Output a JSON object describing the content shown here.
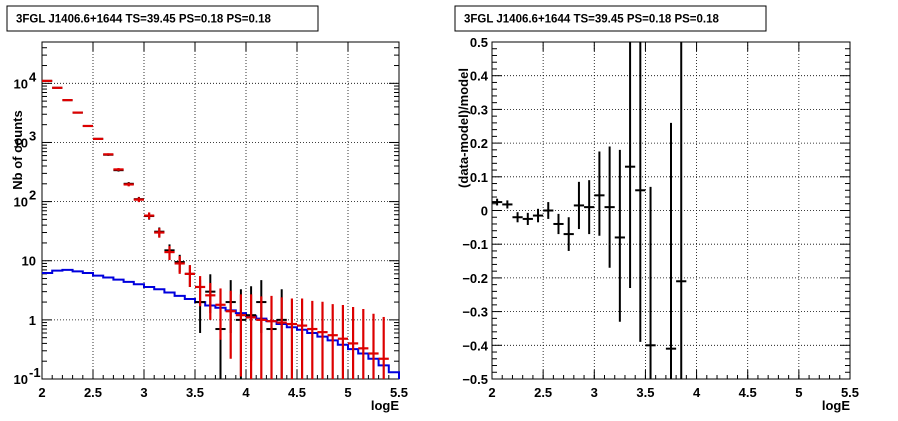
{
  "chart_data": [
    {
      "type": "histogram-errorbars",
      "title": "3FGL J1406.6+1644 TS=39.45 PS=0.18 PS=0.18",
      "xlabel": "logE",
      "ylabel": "Nb of counts",
      "xlim": [
        2,
        5.5
      ],
      "ylim": [
        0.1,
        50000
      ],
      "yscale": "log",
      "grid": true,
      "x_ticks": [
        "2",
        "2.5",
        "3",
        "3.5",
        "4",
        "4.5",
        "5",
        "5.5"
      ],
      "y_ticks": [
        "10^-1",
        "1",
        "10",
        "10^2",
        "10^3",
        "10^4"
      ],
      "bin_edges": [
        2.0,
        2.1,
        2.2,
        2.3,
        2.4,
        2.5,
        2.6,
        2.7,
        2.8,
        2.9,
        3.0,
        3.1,
        3.2,
        3.3,
        3.4,
        3.5,
        3.6,
        3.7,
        3.8,
        3.9,
        4.0,
        4.1,
        4.2,
        4.3,
        4.4,
        4.5,
        4.6,
        4.7,
        4.8,
        4.9,
        5.0,
        5.1,
        5.2,
        5.3,
        5.4,
        5.5
      ],
      "series": [
        {
          "color": "#000000",
          "x": [
            2.05,
            2.15,
            2.25,
            2.35,
            2.45,
            2.55,
            2.65,
            2.75,
            2.85,
            2.95,
            3.05,
            3.15,
            3.25,
            3.35,
            3.45,
            3.55,
            3.65,
            3.75,
            3.85,
            3.95,
            4.05,
            4.15,
            4.25,
            4.35
          ],
          "y": [
            11000,
            8400,
            5200,
            3200,
            1900,
            1150,
            620,
            340,
            200,
            110,
            57,
            31,
            15,
            9.5,
            6,
            2,
            3,
            0.7,
            2,
            1,
            1.2,
            2,
            0.7,
            1
          ],
          "yerr_low": [
            100,
            90,
            70,
            55,
            45,
            35,
            25,
            18,
            14,
            10,
            7.5,
            5.5,
            3.9,
            3.1,
            2.4,
            1.4,
            1.7,
            0.6,
            1.4,
            0.9,
            1.0,
            1.4,
            0.6,
            0.9
          ],
          "yerr_high": [
            100,
            90,
            70,
            55,
            45,
            35,
            25,
            18,
            14,
            10,
            7.5,
            5.5,
            3.9,
            3.1,
            2.4,
            2.7,
            2.9,
            1.6,
            2.7,
            2.3,
            2.5,
            2.7,
            1.6,
            2.3
          ]
        },
        {
          "color": "#dd0000",
          "x": [
            2.05,
            2.15,
            2.25,
            2.35,
            2.45,
            2.55,
            2.65,
            2.75,
            2.85,
            2.95,
            3.05,
            3.15,
            3.25,
            3.35,
            3.45,
            3.55,
            3.65,
            3.75,
            3.85,
            3.95,
            4.05,
            4.15,
            4.25,
            4.35,
            4.45,
            4.55,
            4.65,
            4.75,
            4.85,
            4.95,
            5.05,
            5.15,
            5.25,
            5.35
          ],
          "y": [
            11000,
            8400,
            5200,
            3200,
            1900,
            1150,
            630,
            350,
            195,
            108,
            58,
            30,
            14,
            9,
            6,
            3.6,
            2.6,
            1.8,
            1.4,
            1.2,
            1.1,
            1.0,
            0.95,
            0.9,
            0.85,
            0.8,
            0.7,
            0.62,
            0.55,
            0.48,
            0.4,
            0.33,
            0.27,
            0.22
          ],
          "yerr_low": [
            100,
            90,
            70,
            55,
            45,
            35,
            25,
            19,
            14,
            10,
            7.6,
            5.5,
            3.7,
            3,
            2.4,
            1.9,
            1.6,
            1.34,
            1.18,
            1.09,
            1.04,
            0.99,
            0.94,
            0.89,
            0.84,
            0.79,
            0.69,
            0.61,
            0.54,
            0.47,
            0.39,
            0.32,
            0.26,
            0.21
          ],
          "yerr_high": [
            100,
            90,
            70,
            55,
            45,
            35,
            25,
            19,
            14,
            10,
            7.6,
            5.5,
            3.7,
            3,
            2.4,
            1.9,
            1.6,
            1.6,
            1.7,
            1.5,
            1.6,
            1.5,
            1.6,
            1.5,
            1.45,
            1.5,
            1.4,
            1.4,
            1.3,
            1.3,
            1.25,
            1.2,
            1.0,
            0.9
          ]
        },
        {
          "color": "#0000dd",
          "step_values": [
            6.2,
            6.8,
            7.0,
            6.6,
            6.2,
            5.6,
            5.2,
            4.8,
            4.4,
            4.0,
            3.6,
            3.3,
            2.9,
            2.55,
            2.25,
            2.0,
            1.75,
            1.6,
            1.45,
            1.3,
            1.15,
            1.05,
            0.95,
            0.85,
            0.75,
            0.68,
            0.6,
            0.52,
            0.45,
            0.38,
            0.32,
            0.27,
            0.22,
            0.17,
            0.13
          ]
        }
      ]
    },
    {
      "type": "errorbars",
      "title": "3FGL J1406.6+1644 TS=39.45 PS=0.18 PS=0.18",
      "xlabel": "logE",
      "ylabel": "(data-model)/model",
      "xlim": [
        2,
        5.5
      ],
      "ylim": [
        -0.5,
        0.5
      ],
      "grid": true,
      "x_ticks": [
        "2",
        "2.5",
        "3",
        "3.5",
        "4",
        "4.5",
        "5",
        "5.5"
      ],
      "y_ticks": [
        "−0.5",
        "−0.4",
        "−0.3",
        "−0.2",
        "−0.1",
        "0",
        "0.1",
        "0.2",
        "0.3",
        "0.4",
        "0.5"
      ],
      "series": [
        {
          "color": "#000000",
          "x": [
            2.05,
            2.15,
            2.25,
            2.35,
            2.45,
            2.55,
            2.65,
            2.75,
            2.85,
            2.95,
            3.05,
            3.15,
            3.25,
            3.35,
            3.45,
            3.55,
            3.75,
            3.85
          ],
          "y": [
            0.025,
            0.018,
            -0.02,
            -0.025,
            -0.015,
            0.0,
            -0.04,
            -0.07,
            0.015,
            0.01,
            0.045,
            0.01,
            -0.08,
            0.13,
            0.06,
            -0.4,
            -0.41,
            -0.21
          ],
          "yerr_low": [
            0.01,
            0.012,
            0.015,
            0.018,
            0.02,
            0.025,
            0.03,
            0.05,
            0.07,
            0.08,
            0.12,
            0.18,
            0.25,
            0.36,
            0.45,
            0.1,
            0.09,
            0.29
          ],
          "yerr_high": [
            0.01,
            0.012,
            0.015,
            0.018,
            0.02,
            0.025,
            0.03,
            0.05,
            0.07,
            0.08,
            0.13,
            0.18,
            0.26,
            0.37,
            0.45,
            0.47,
            0.67,
            0.71
          ]
        }
      ]
    }
  ]
}
